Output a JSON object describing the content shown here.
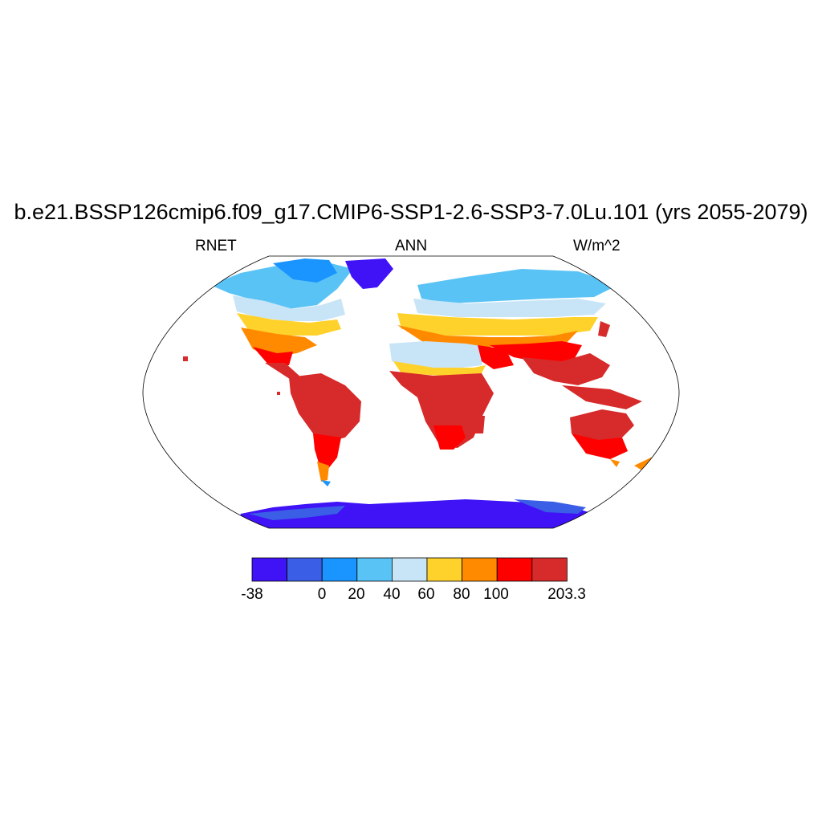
{
  "figure": {
    "title": "b.e21.BSSP126cmip6.f09_g17.CMIP6-SSP1-2.6-SSP3-7.0Lu.101 (yrs 2055-2079)",
    "left_label": "RNET",
    "center_label": "ANN",
    "right_label": "W/m^2"
  },
  "map": {
    "projection": "robinson",
    "field_note_colors": "land shaded by annual net radiation"
  },
  "colorbar": {
    "colors": [
      "#3f13f6",
      "#3b5ee6",
      "#1a95ff",
      "#5ac3f5",
      "#c8e5f7",
      "#ffd12b",
      "#ff8a00",
      "#ff0000",
      "#d72a2a"
    ],
    "labels": [
      "-38",
      "0",
      "20",
      "40",
      "60",
      "80",
      "100",
      "203.3"
    ]
  }
}
